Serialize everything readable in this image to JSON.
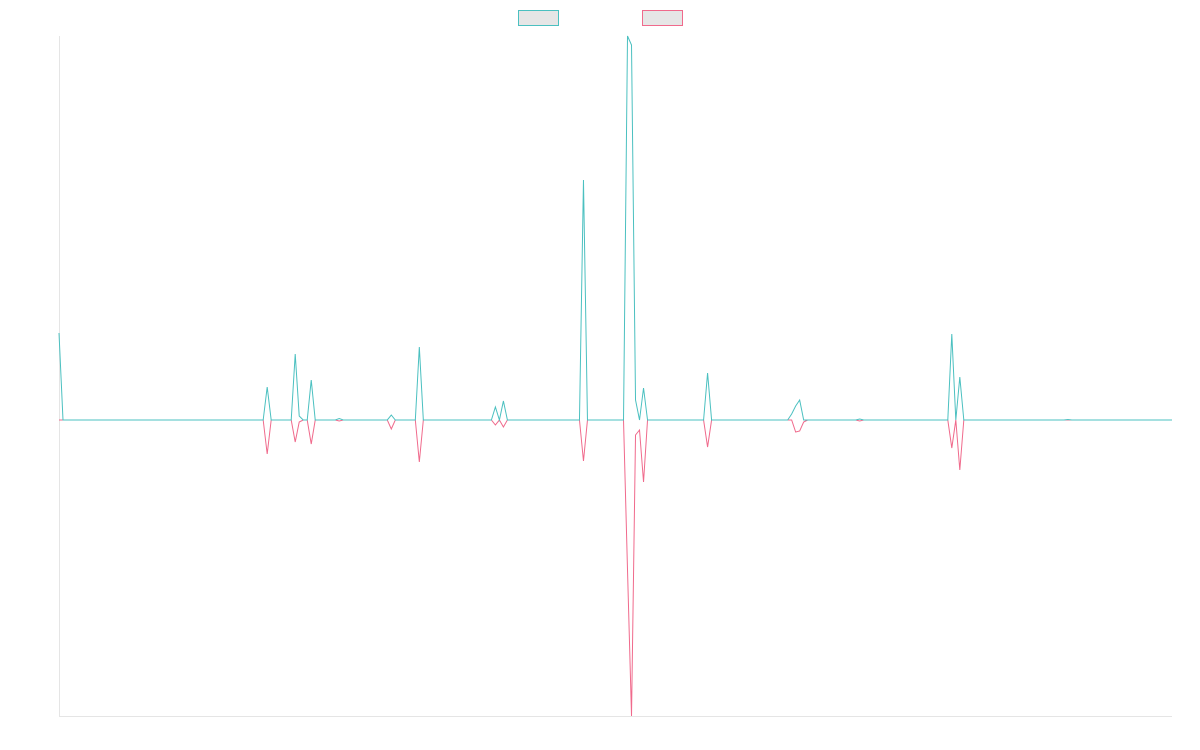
{
  "chart_data": {
    "type": "line",
    "legend": "top",
    "grid": false,
    "ylim": [
      -296,
      384
    ],
    "categories": [
      null,
      null,
      null,
      null,
      null,
      null,
      null,
      null,
      null,
      null,
      null,
      null,
      null,
      null,
      null,
      null,
      null,
      null,
      null,
      null,
      null,
      null,
      null,
      null,
      null,
      null,
      null,
      null,
      null,
      null,
      null,
      null,
      null,
      null,
      null,
      null,
      null,
      null,
      null,
      null,
      null,
      null,
      null,
      null,
      null,
      null,
      null,
      null,
      null,
      null,
      null,
      null,
      null,
      null,
      null,
      null,
      null,
      null,
      null,
      null,
      null,
      null,
      null,
      null,
      null,
      null,
      null,
      null,
      null,
      null,
      null,
      null,
      null,
      null,
      null,
      null,
      null,
      null,
      null,
      null,
      null,
      null,
      null,
      null,
      null,
      null,
      null,
      null,
      null,
      null,
      null,
      null,
      null,
      null,
      null,
      null,
      null,
      null,
      null,
      null,
      null,
      null,
      null,
      null,
      null,
      null,
      null,
      null,
      null,
      null,
      null,
      null,
      null,
      null,
      null,
      null,
      null,
      null,
      null,
      null,
      null,
      null,
      null,
      null,
      null,
      null,
      null,
      null,
      null,
      null,
      null,
      null,
      null,
      null,
      null,
      null,
      null,
      null,
      null,
      null,
      null,
      null,
      null,
      null,
      null,
      null,
      null,
      null,
      null,
      null,
      null,
      null,
      null,
      null,
      null,
      null,
      null,
      null,
      null,
      null,
      null,
      null,
      null,
      null,
      null,
      null,
      null,
      null,
      null,
      null,
      null,
      null,
      null,
      null,
      null,
      null,
      null,
      null,
      null,
      null,
      null,
      null,
      null,
      null,
      null,
      null,
      null,
      null,
      null,
      null,
      null,
      null,
      null,
      null,
      null,
      null,
      null,
      null,
      null,
      null,
      null,
      null,
      null,
      null,
      null,
      null,
      null,
      null,
      null,
      null,
      null,
      null,
      null,
      null,
      null,
      null,
      null,
      null,
      null,
      null,
      null,
      null,
      null,
      null,
      null,
      null,
      null,
      null,
      null,
      null,
      null,
      null,
      null,
      null,
      null,
      null,
      null,
      null,
      null,
      null,
      null,
      null,
      null,
      null,
      null,
      null,
      null,
      null,
      null,
      null,
      null,
      null,
      null,
      null,
      null,
      null,
      null,
      null,
      null,
      null,
      null,
      null,
      null,
      null,
      null,
      null,
      null,
      null,
      null,
      null,
      null,
      null,
      null,
      null,
      null,
      null,
      null,
      null,
      null
    ],
    "series": [
      {
        "color": "#4bc0c0",
        "values": [
          87,
          0,
          0,
          0,
          0,
          0,
          0,
          0,
          0,
          0,
          0,
          0,
          0,
          0,
          0,
          0,
          0,
          0,
          0,
          0,
          0,
          0,
          0,
          0,
          0,
          0,
          0,
          0,
          0,
          0,
          0,
          0,
          0,
          0,
          0,
          0,
          0,
          0,
          0,
          0,
          0,
          0,
          0,
          0,
          0,
          0,
          0,
          0,
          0,
          0,
          0,
          0,
          33,
          0,
          0,
          0,
          0,
          0,
          0,
          66,
          4,
          0,
          0,
          40,
          0,
          0,
          0,
          0,
          0,
          0,
          1.5,
          0,
          0,
          0,
          0,
          0,
          0,
          0,
          0,
          0,
          0,
          0,
          0,
          5,
          0,
          0,
          0,
          0,
          0,
          0,
          73,
          0,
          0,
          0,
          0,
          0,
          0,
          0,
          0,
          0,
          0,
          0,
          0,
          0,
          0,
          0,
          0,
          0,
          0,
          13,
          0,
          19,
          0,
          0,
          0,
          0,
          0,
          0,
          0,
          0,
          0,
          0,
          0,
          0,
          0,
          0,
          0,
          0,
          0,
          0,
          0,
          240,
          0,
          0,
          0,
          0,
          0,
          0,
          0,
          0,
          0,
          0,
          384,
          375,
          20,
          0,
          32,
          0,
          0,
          0,
          0,
          0,
          0,
          0,
          0,
          0,
          0,
          0,
          0,
          0,
          0,
          0,
          47,
          0,
          0,
          0,
          0,
          0,
          0,
          0,
          0,
          0,
          0,
          0,
          0,
          0,
          0,
          0,
          0,
          0,
          0,
          0,
          0,
          6,
          14,
          20,
          0,
          0,
          0,
          0,
          0,
          0,
          0,
          0,
          0,
          0,
          0,
          0,
          0,
          0,
          1,
          0,
          0,
          0,
          0,
          0,
          0,
          0,
          0,
          0,
          0,
          0,
          0,
          0,
          0,
          0,
          0,
          0,
          0,
          0,
          0,
          0,
          0,
          86,
          0,
          43,
          0,
          0,
          0,
          0,
          0,
          0,
          0,
          0,
          0,
          0,
          0,
          0,
          0,
          0,
          0,
          0,
          0,
          0,
          0,
          0,
          0,
          0,
          0,
          0,
          0,
          0,
          0.5,
          0,
          0,
          0,
          0,
          0,
          0,
          0,
          0,
          0,
          0,
          0,
          0,
          0,
          0,
          0,
          0,
          0,
          0,
          0,
          0,
          0,
          0,
          0,
          0,
          0,
          0
        ]
      },
      {
        "color": "#f06a8c",
        "values": [
          0,
          0,
          0,
          0,
          0,
          0,
          0,
          0,
          0,
          0,
          0,
          0,
          0,
          0,
          0,
          0,
          0,
          0,
          0,
          0,
          0,
          0,
          0,
          0,
          0,
          0,
          0,
          0,
          0,
          0,
          0,
          0,
          0,
          0,
          0,
          0,
          0,
          0,
          0,
          0,
          0,
          0,
          0,
          0,
          0,
          0,
          0,
          0,
          0,
          0,
          0,
          0,
          -34,
          0,
          0,
          0,
          0,
          0,
          0,
          -22,
          -2,
          0,
          0,
          -24,
          0,
          0,
          0,
          0,
          0,
          0,
          -1,
          0,
          0,
          0,
          0,
          0,
          0,
          0,
          0,
          0,
          0,
          0,
          0,
          -9,
          0,
          0,
          0,
          0,
          0,
          0,
          -42,
          0,
          0,
          0,
          0,
          0,
          0,
          0,
          0,
          0,
          0,
          0,
          0,
          0,
          0,
          0,
          0,
          0,
          0,
          -5,
          0,
          -7,
          0,
          0,
          0,
          0,
          0,
          0,
          0,
          0,
          0,
          0,
          0,
          0,
          0,
          0,
          0,
          0,
          0,
          0,
          0,
          -41,
          0,
          0,
          0,
          0,
          0,
          0,
          0,
          0,
          0,
          0,
          -150,
          -296,
          -15,
          -10,
          -62,
          0,
          0,
          0,
          0,
          0,
          0,
          0,
          0,
          0,
          0,
          0,
          0,
          0,
          0,
          0,
          -27,
          0,
          0,
          0,
          0,
          0,
          0,
          0,
          0,
          0,
          0,
          0,
          0,
          0,
          0,
          0,
          0,
          0,
          0,
          0,
          0,
          0,
          -12,
          -11,
          -2,
          0,
          0,
          0,
          0,
          0,
          0,
          0,
          0,
          0,
          0,
          0,
          0,
          0,
          -1,
          0,
          0,
          0,
          0,
          0,
          0,
          0,
          0,
          0,
          0,
          0,
          0,
          0,
          0,
          0,
          0,
          0,
          0,
          0,
          0,
          0,
          0,
          -28,
          0,
          -50,
          0,
          0,
          0,
          0,
          0,
          0,
          0,
          0,
          0,
          0,
          0,
          0,
          0,
          0,
          0,
          0,
          0,
          0,
          0,
          0,
          0,
          0,
          0,
          0,
          0,
          0,
          0,
          0,
          0,
          0,
          0,
          0,
          0,
          0,
          0,
          0,
          0,
          0,
          0,
          0,
          0,
          0,
          0,
          0,
          0,
          0,
          0,
          0,
          0,
          0,
          0,
          0,
          0
        ]
      }
    ]
  }
}
